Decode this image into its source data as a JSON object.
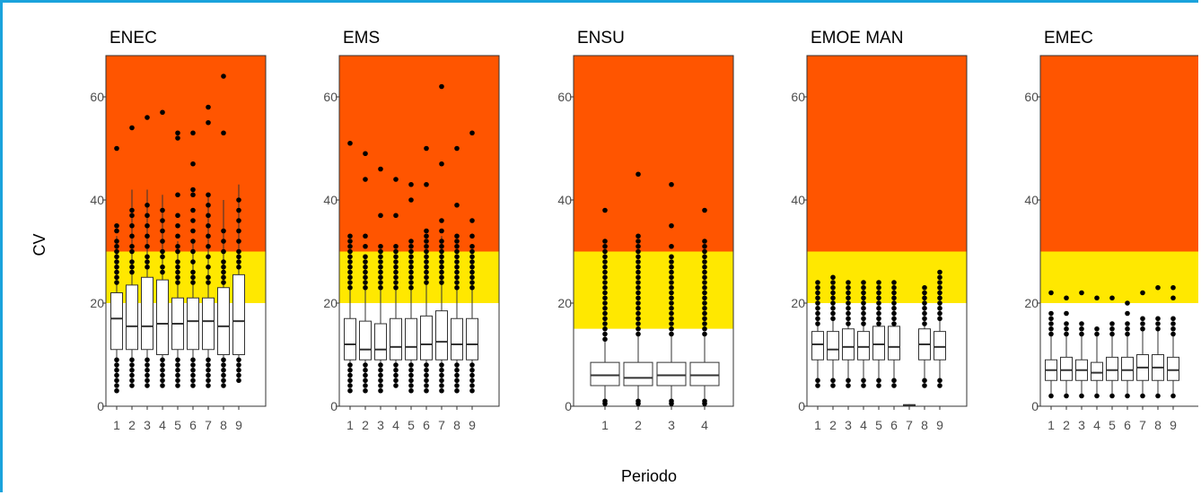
{
  "chart_data": {
    "type": "boxplot",
    "ylabel": "CV",
    "xlabel": "Periodo",
    "ylim": [
      0,
      68
    ],
    "yticks": [
      0,
      20,
      40,
      60
    ],
    "grid": false,
    "colors": {
      "red": "#ff5500",
      "yellow": "#ffe800",
      "white": "#ffffff",
      "box_fill": "#ffffff",
      "box_stroke": "#333333",
      "point": "#000000"
    },
    "panels": [
      {
        "title": "ENEC",
        "bands": {
          "yellow_from": 20,
          "red_from": 30
        },
        "categories": [
          "1",
          "2",
          "3",
          "4",
          "5",
          "6",
          "7",
          "8",
          "9"
        ],
        "boxes": [
          {
            "q1": 11,
            "median": 17,
            "q3": 22,
            "whisker_low": 4,
            "whisker_high": 33,
            "outliers": [
              50,
              35,
              34,
              32,
              31,
              30,
              29,
              28,
              27,
              26,
              25,
              24,
              9,
              8,
              7,
              6,
              5,
              4,
              3
            ]
          },
          {
            "q1": 11,
            "median": 15.5,
            "q3": 23.5,
            "whisker_low": 4,
            "whisker_high": 42,
            "outliers": [
              54,
              38,
              37,
              35,
              33,
              31,
              30,
              28,
              27,
              26,
              9,
              8,
              7,
              6,
              5,
              4
            ]
          },
          {
            "q1": 11,
            "median": 15.5,
            "q3": 25,
            "whisker_low": 4,
            "whisker_high": 42,
            "outliers": [
              56,
              39,
              37,
              35,
              33,
              31,
              29,
              28,
              27,
              9,
              8,
              7,
              6,
              5,
              4
            ]
          },
          {
            "q1": 10,
            "median": 16,
            "q3": 24.5,
            "whisker_low": 4,
            "whisker_high": 41,
            "outliers": [
              57,
              38,
              36,
              34,
              32,
              30,
              29,
              27,
              26,
              9,
              8,
              7,
              6,
              5,
              4
            ]
          },
          {
            "q1": 11,
            "median": 16,
            "q3": 21,
            "whisker_low": 4,
            "whisker_high": 32,
            "outliers": [
              53,
              52,
              41,
              37,
              35,
              33,
              31,
              30,
              28,
              27,
              26,
              25,
              24,
              9,
              8,
              7,
              6,
              5,
              4
            ]
          },
          {
            "q1": 11,
            "median": 16.5,
            "q3": 21,
            "whisker_low": 4,
            "whisker_high": 32,
            "outliers": [
              53,
              47,
              42,
              41,
              38,
              36,
              34,
              32,
              30,
              28,
              26,
              25,
              24,
              9,
              8,
              7,
              6,
              5,
              4
            ]
          },
          {
            "q1": 11,
            "median": 16.5,
            "q3": 21,
            "whisker_low": 4,
            "whisker_high": 41,
            "outliers": [
              58,
              55,
              41,
              39,
              37,
              35,
              33,
              31,
              29,
              27,
              25,
              24,
              9,
              8,
              7,
              6,
              5,
              4
            ]
          },
          {
            "q1": 10,
            "median": 15.5,
            "q3": 23,
            "whisker_low": 4,
            "whisker_high": 40,
            "outliers": [
              64,
              53,
              34,
              32,
              30,
              28,
              27,
              26,
              25,
              24,
              9,
              8,
              7,
              6,
              5,
              4
            ]
          },
          {
            "q1": 10,
            "median": 16.5,
            "q3": 25.5,
            "whisker_low": 5,
            "whisker_high": 43,
            "outliers": [
              40,
              38,
              36,
              34,
              32,
              30,
              29,
              28,
              27,
              9,
              8,
              7,
              6,
              5
            ]
          }
        ]
      },
      {
        "title": "EMS",
        "bands": {
          "yellow_from": 20,
          "red_from": 30
        },
        "categories": [
          "1",
          "2",
          "3",
          "4",
          "5",
          "6",
          "7",
          "8",
          "9"
        ],
        "boxes": [
          {
            "q1": 9,
            "median": 12,
            "q3": 17,
            "whisker_low": 4,
            "whisker_high": 29,
            "outliers": [
              51,
              33,
              32,
              31,
              30,
              29,
              28,
              27,
              26,
              25,
              24,
              23,
              8,
              7,
              6,
              5,
              4,
              3
            ]
          },
          {
            "q1": 9,
            "median": 11,
            "q3": 16.5,
            "whisker_low": 4,
            "whisker_high": 28,
            "outliers": [
              49,
              44,
              33,
              31,
              29,
              28,
              27,
              26,
              25,
              24,
              23,
              8,
              7,
              6,
              5,
              4,
              3
            ]
          },
          {
            "q1": 9,
            "median": 11,
            "q3": 16,
            "whisker_low": 4,
            "whisker_high": 27,
            "outliers": [
              46,
              37,
              31,
              30,
              29,
              28,
              27,
              26,
              25,
              24,
              23,
              8,
              7,
              6,
              5,
              4,
              3
            ]
          },
          {
            "q1": 9,
            "median": 11.5,
            "q3": 17,
            "whisker_low": 4,
            "whisker_high": 28,
            "outliers": [
              44,
              37,
              31,
              30,
              29,
              28,
              27,
              26,
              25,
              24,
              23,
              8,
              7,
              6,
              5,
              4
            ]
          },
          {
            "q1": 9,
            "median": 11.5,
            "q3": 17,
            "whisker_low": 4,
            "whisker_high": 28,
            "outliers": [
              43,
              40,
              32,
              31,
              30,
              29,
              28,
              27,
              26,
              25,
              24,
              23,
              8,
              7,
              6,
              5,
              4,
              3
            ]
          },
          {
            "q1": 9,
            "median": 12,
            "q3": 17.5,
            "whisker_low": 4,
            "whisker_high": 30,
            "outliers": [
              50,
              43,
              34,
              33,
              32,
              31,
              30,
              29,
              28,
              27,
              26,
              25,
              24,
              8,
              7,
              6,
              5,
              4,
              3
            ]
          },
          {
            "q1": 9,
            "median": 12.5,
            "q3": 18.5,
            "whisker_low": 4,
            "whisker_high": 33,
            "outliers": [
              62,
              47,
              36,
              34,
              32,
              31,
              30,
              29,
              28,
              27,
              26,
              25,
              24,
              8,
              7,
              6,
              5,
              4,
              3
            ]
          },
          {
            "q1": 9,
            "median": 12,
            "q3": 17,
            "whisker_low": 4,
            "whisker_high": 28,
            "outliers": [
              50,
              39,
              33,
              32,
              31,
              30,
              29,
              28,
              27,
              26,
              25,
              24,
              23,
              8,
              7,
              6,
              5,
              4,
              3
            ]
          },
          {
            "q1": 9,
            "median": 12,
            "q3": 17,
            "whisker_low": 4,
            "whisker_high": 29,
            "outliers": [
              53,
              36,
              33,
              31,
              30,
              29,
              28,
              27,
              26,
              25,
              24,
              23,
              8,
              7,
              6,
              5,
              4,
              3
            ]
          }
        ]
      },
      {
        "title": "ENSU",
        "bands": {
          "yellow_from": 15,
          "red_from": 30
        },
        "categories": [
          "1",
          "2",
          "3",
          "4"
        ],
        "boxes": [
          {
            "q1": 4,
            "median": 6,
            "q3": 8.5,
            "whisker_low": 1,
            "whisker_high": 14,
            "outliers": [
              38,
              32,
              31,
              30,
              29,
              28,
              27,
              26,
              25,
              24,
              23,
              22,
              21,
              20,
              19,
              18,
              17,
              16,
              15,
              14,
              13,
              1,
              0.5
            ]
          },
          {
            "q1": 4,
            "median": 5.5,
            "q3": 8.5,
            "whisker_low": 1,
            "whisker_high": 14,
            "outliers": [
              45,
              33,
              32,
              31,
              30,
              29,
              28,
              27,
              26,
              25,
              24,
              23,
              22,
              21,
              20,
              19,
              18,
              17,
              16,
              15,
              14,
              1,
              0.5
            ]
          },
          {
            "q1": 4,
            "median": 6,
            "q3": 8.5,
            "whisker_low": 1,
            "whisker_high": 14,
            "outliers": [
              43,
              35,
              31,
              29,
              28,
              27,
              26,
              25,
              24,
              23,
              22,
              21,
              20,
              19,
              18,
              17,
              16,
              15,
              14,
              1,
              0.5
            ]
          },
          {
            "q1": 4,
            "median": 6,
            "q3": 8.5,
            "whisker_low": 1,
            "whisker_high": 14,
            "outliers": [
              38,
              32,
              31,
              30,
              29,
              28,
              27,
              26,
              25,
              24,
              23,
              22,
              21,
              20,
              19,
              18,
              17,
              16,
              15,
              14,
              1,
              0.5
            ]
          }
        ]
      },
      {
        "title": "EMOE MAN",
        "bands": {
          "yellow_from": 20,
          "red_from": 30
        },
        "categories": [
          "1",
          "2",
          "3",
          "4",
          "5",
          "6",
          "7",
          "8",
          "9"
        ],
        "boxes": [
          {
            "q1": 9,
            "median": 12,
            "q3": 14.5,
            "whisker_low": 4,
            "whisker_high": 23,
            "outliers": [
              24,
              23,
              22,
              21,
              20,
              19,
              18,
              17,
              16,
              5,
              4
            ]
          },
          {
            "q1": 9,
            "median": 11,
            "q3": 14.5,
            "whisker_low": 4,
            "whisker_high": 23,
            "outliers": [
              25,
              24,
              23,
              22,
              21,
              20,
              19,
              18,
              17,
              5,
              4
            ]
          },
          {
            "q1": 9,
            "median": 11.5,
            "q3": 15,
            "whisker_low": 4,
            "whisker_high": 23,
            "outliers": [
              24,
              23,
              22,
              21,
              20,
              19,
              18,
              17,
              16,
              5,
              4
            ]
          },
          {
            "q1": 9,
            "median": 11.5,
            "q3": 14.5,
            "whisker_low": 4,
            "whisker_high": 23,
            "outliers": [
              24,
              23,
              22,
              21,
              20,
              19,
              18,
              17,
              16,
              5,
              4
            ]
          },
          {
            "q1": 9,
            "median": 12,
            "q3": 15.5,
            "whisker_low": 4,
            "whisker_high": 23,
            "outliers": [
              24,
              23,
              22,
              21,
              20,
              19,
              18,
              17,
              16,
              5,
              4
            ]
          },
          {
            "q1": 9,
            "median": 11.5,
            "q3": 15.5,
            "whisker_low": 4,
            "whisker_high": 23,
            "outliers": [
              24,
              23,
              22,
              21,
              20,
              19,
              18,
              17,
              16,
              5,
              4
            ]
          },
          {
            "q1": 0.1,
            "median": 0.2,
            "q3": 0.3,
            "whisker_low": 0,
            "whisker_high": 0.4,
            "outliers": []
          },
          {
            "q1": 9,
            "median": 12,
            "q3": 15,
            "whisker_low": 4,
            "whisker_high": 22,
            "outliers": [
              23,
              22,
              21,
              20,
              19,
              18,
              17,
              16,
              5,
              4
            ]
          },
          {
            "q1": 9,
            "median": 11.5,
            "q3": 14.5,
            "whisker_low": 4,
            "whisker_high": 23,
            "outliers": [
              26,
              25,
              24,
              23,
              22,
              21,
              20,
              19,
              18,
              17,
              5,
              4
            ]
          }
        ]
      },
      {
        "title": "EMEC",
        "bands": {
          "yellow_from": 20,
          "red_from": 30
        },
        "categories": [
          "1",
          "2",
          "3",
          "4",
          "5",
          "6",
          "7",
          "8",
          "9"
        ],
        "boxes": [
          {
            "q1": 5,
            "median": 7,
            "q3": 9,
            "whisker_low": 2,
            "whisker_high": 14,
            "outliers": [
              22,
              18,
              17,
              16,
              15,
              14,
              2
            ]
          },
          {
            "q1": 5,
            "median": 7,
            "q3": 9.5,
            "whisker_low": 2,
            "whisker_high": 14,
            "outliers": [
              21,
              18,
              16,
              15,
              14,
              2
            ]
          },
          {
            "q1": 5,
            "median": 7,
            "q3": 9,
            "whisker_low": 2,
            "whisker_high": 14,
            "outliers": [
              22,
              16,
              15,
              14,
              2
            ]
          },
          {
            "q1": 5,
            "median": 6.5,
            "q3": 8.5,
            "whisker_low": 2,
            "whisker_high": 14,
            "outliers": [
              21,
              15,
              14,
              2
            ]
          },
          {
            "q1": 5,
            "median": 7,
            "q3": 9.5,
            "whisker_low": 2,
            "whisker_high": 14,
            "outliers": [
              21,
              16,
              15,
              14,
              2
            ]
          },
          {
            "q1": 5,
            "median": 7,
            "q3": 9.5,
            "whisker_low": 2,
            "whisker_high": 14,
            "outliers": [
              20,
              18,
              16,
              15,
              14,
              2
            ]
          },
          {
            "q1": 5,
            "median": 7.5,
            "q3": 10,
            "whisker_low": 2,
            "whisker_high": 15,
            "outliers": [
              22,
              17,
              16,
              15,
              2
            ]
          },
          {
            "q1": 5,
            "median": 7.5,
            "q3": 10,
            "whisker_low": 2,
            "whisker_high": 15,
            "outliers": [
              23,
              17,
              16,
              15,
              2
            ]
          },
          {
            "q1": 5,
            "median": 7,
            "q3": 9.5,
            "whisker_low": 2,
            "whisker_high": 14,
            "outliers": [
              23,
              21,
              17,
              16,
              15,
              14,
              2
            ]
          }
        ]
      }
    ]
  }
}
